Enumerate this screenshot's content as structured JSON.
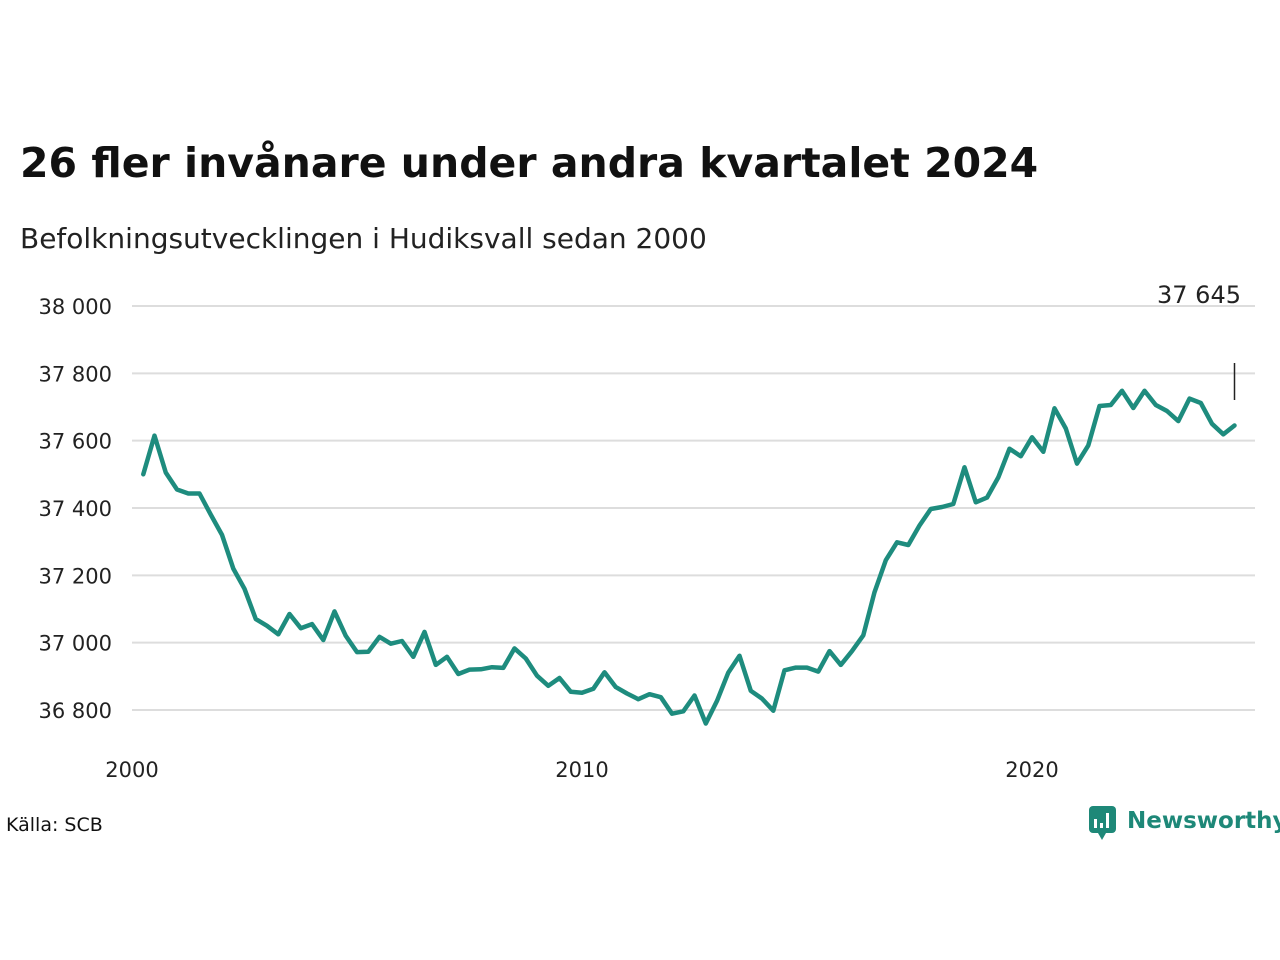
{
  "chart_data": {
    "type": "line",
    "title": "26 fler invånare under andra kvartalet 2024",
    "subtitle": "Befolkningsutvecklingen i Hudiksvall sedan 2000",
    "xlabel": "",
    "ylabel": "",
    "xlim": [
      2000,
      2025
    ],
    "ylim": [
      36700,
      38050
    ],
    "yticks": [
      36800,
      37000,
      37200,
      37400,
      37600,
      37800,
      38000
    ],
    "ytick_labels": [
      "36 800",
      "37 000",
      "37 200",
      "37 400",
      "37 600",
      "37 800",
      "38 000"
    ],
    "xticks": [
      2000,
      2010,
      2020
    ],
    "xtick_labels": [
      "2000",
      "2010",
      "2020"
    ],
    "grid": true,
    "line_color": "#1e8c7e",
    "series": [
      {
        "x": [
          2000.25,
          2000.5,
          2000.75,
          2001.0,
          2001.25,
          2001.5,
          2001.75,
          2002.0,
          2002.25,
          2002.5,
          2002.75,
          2003.0,
          2003.25,
          2003.5,
          2003.75,
          2004.0,
          2004.25,
          2004.5,
          2004.75,
          2005.0,
          2005.25,
          2005.5,
          2005.75,
          2006.0,
          2006.25,
          2006.5,
          2006.75,
          2007.0,
          2007.25,
          2007.5,
          2007.75,
          2008.0,
          2008.25,
          2008.5,
          2008.75,
          2009.0,
          2009.25,
          2009.5,
          2009.75,
          2010.0,
          2010.25,
          2010.5,
          2010.75,
          2011.0,
          2011.25,
          2011.5,
          2011.75,
          2012.0,
          2012.25,
          2012.5,
          2012.75,
          2013.0,
          2013.25,
          2013.5,
          2013.75,
          2014.0,
          2014.25,
          2014.5,
          2014.75,
          2015.0,
          2015.25,
          2015.5,
          2015.75,
          2016.0,
          2016.25,
          2016.5,
          2016.75,
          2017.0,
          2017.25,
          2017.5,
          2017.75,
          2018.0,
          2018.25,
          2018.5,
          2018.75,
          2019.0,
          2019.25,
          2019.5,
          2019.75,
          2020.0,
          2020.25,
          2020.5,
          2020.75,
          2021.0,
          2021.25,
          2021.5,
          2021.75,
          2022.0,
          2022.25,
          2022.5,
          2022.75,
          2023.0,
          2023.25,
          2023.5,
          2023.75,
          2024.0,
          2024.25,
          2024.5
        ],
        "y": [
          37500,
          37615,
          37505,
          37455,
          37443,
          37443,
          37380,
          37320,
          37220,
          37160,
          37070,
          37050,
          37025,
          37085,
          37043,
          37055,
          37008,
          37093,
          37020,
          36972,
          36973,
          37017,
          36997,
          37005,
          36958,
          37032,
          36934,
          36958,
          36907,
          36920,
          36921,
          36927,
          36925,
          36983,
          36953,
          36902,
          36872,
          36895,
          36854,
          36851,
          36863,
          36912,
          36868,
          36849,
          36832,
          36847,
          36838,
          36789,
          36796,
          36843,
          36760,
          36827,
          36911,
          36961,
          36857,
          36834,
          36798,
          36918,
          36926,
          36926,
          36914,
          36975,
          36934,
          36975,
          37022,
          37150,
          37245,
          37298,
          37290,
          37348,
          37397,
          37403,
          37412,
          37521,
          37417,
          37431,
          37491,
          37576,
          37554,
          37610,
          37567,
          37696,
          37636,
          37532,
          37586,
          37703,
          37706,
          37748,
          37697,
          37748,
          37706,
          37688,
          37658,
          37725,
          37712,
          37650,
          37619,
          37645
        ]
      }
    ],
    "end_label": "37 645",
    "source": "Källa: SCB",
    "brand": "Newsworthy"
  }
}
